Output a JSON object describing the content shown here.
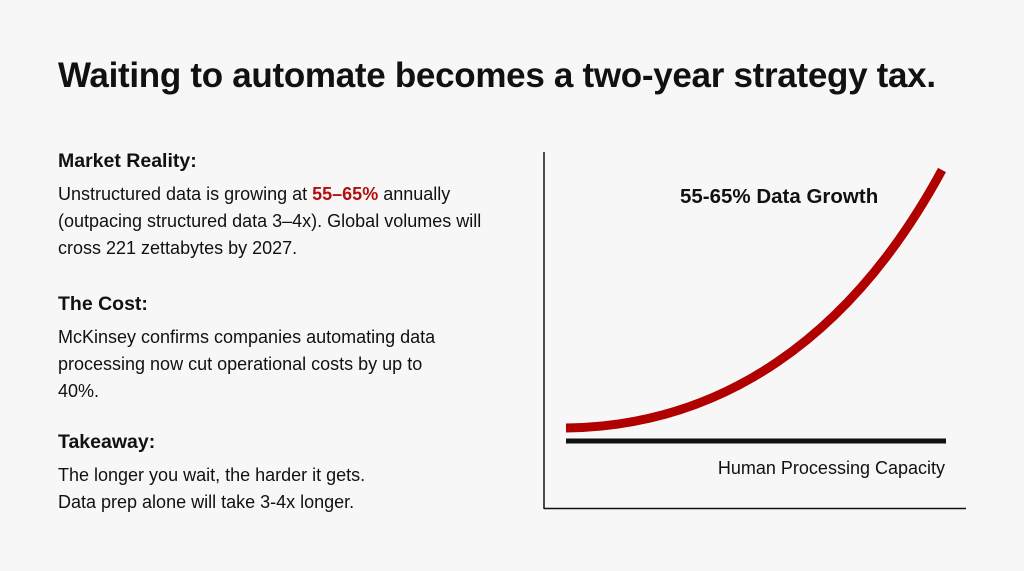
{
  "title": "Waiting to automate becomes a two-year strategy tax.",
  "sections": [
    {
      "heading": "Market Reality:",
      "body_before": "Unstructured data is growing at ",
      "highlight": "55–65%",
      "body_after": " annually (outpacing structured data 3–4x). Global volumes will cross 221 zettabytes by 2027."
    },
    {
      "heading": "The Cost:",
      "body": "McKinsey confirms companies automating data processing now cut operational costs by up to 40%."
    },
    {
      "heading": "Takeaway:",
      "body_line1": "The longer you wait, the harder it gets.",
      "body_line2": "Data prep alone will take 3-4x longer."
    }
  ],
  "diagram": {
    "growth_label": "55-65% Data Growth",
    "capacity_label": "Human Processing Capacity",
    "colors": {
      "growth_curve": "#b00000",
      "capacity_line": "#111111",
      "highlight": "#b01010",
      "background": "#f7f7f7"
    }
  }
}
